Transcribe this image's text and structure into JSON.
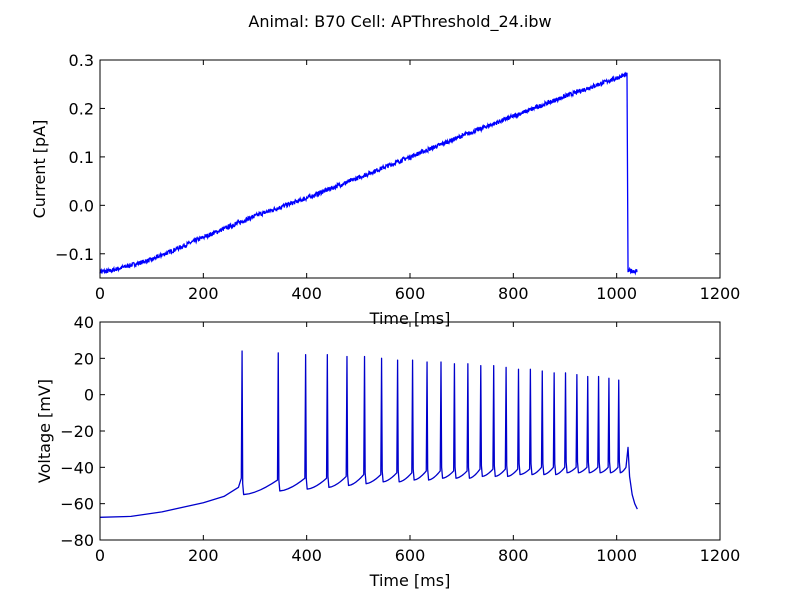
{
  "figure_title": "Animal: B70 Cell: APThreshold_24.ibw",
  "chart_data": [
    {
      "type": "line",
      "xlabel": "Time [ms]",
      "ylabel": "Current [pA]",
      "xlim": [
        0,
        1200
      ],
      "ylim": [
        -0.15,
        0.3
      ],
      "xticks": [
        0,
        200,
        400,
        600,
        800,
        1000,
        1200
      ],
      "xtick_labels": [
        "0",
        "200",
        "400",
        "600",
        "800",
        "1000",
        "1200"
      ],
      "yticks": [
        -0.1,
        0.0,
        0.1,
        0.2,
        0.3
      ],
      "ytick_labels": [
        "−0.1",
        "0.0",
        "0.1",
        "0.2",
        "0.3"
      ],
      "grid": false,
      "color": "#0000ff",
      "series": [
        {
          "x": [
            0,
            20,
            20,
            100,
            200,
            300,
            400,
            500,
            600,
            700,
            800,
            900,
            1000,
            1020,
            1022,
            1040
          ],
          "y": [
            -0.136,
            -0.136,
            -0.135,
            -0.112,
            -0.066,
            -0.022,
            0.015,
            0.057,
            0.1,
            0.143,
            0.184,
            0.225,
            0.263,
            0.27,
            -0.135,
            -0.136
          ]
        }
      ]
    },
    {
      "type": "line",
      "xlabel": "Time [ms]",
      "ylabel": "Voltage [mV]",
      "xlim": [
        0,
        1200
      ],
      "ylim": [
        -80,
        40
      ],
      "xticks": [
        0,
        200,
        400,
        600,
        800,
        1000,
        1200
      ],
      "xtick_labels": [
        "0",
        "200",
        "400",
        "600",
        "800",
        "1000",
        "1200"
      ],
      "yticks": [
        -80,
        -60,
        -40,
        -20,
        0,
        20,
        40
      ],
      "ytick_labels": [
        "−80",
        "−60",
        "−40",
        "−20",
        "0",
        "20",
        "40"
      ],
      "grid": false,
      "color": "#0000cc",
      "baseline": [
        [
          0,
          -67.5
        ],
        [
          60,
          -67
        ],
        [
          120,
          -64.5
        ],
        [
          200,
          -59.5
        ],
        [
          240,
          -56
        ],
        [
          268,
          -51
        ]
      ],
      "spikes": [
        {
          "t": 275,
          "peak": 24,
          "pre": -46,
          "trough": -55
        },
        {
          "t": 345,
          "peak": 23,
          "pre": -47,
          "trough": -53
        },
        {
          "t": 398,
          "peak": 22,
          "pre": -46,
          "trough": -52
        },
        {
          "t": 440,
          "peak": 22,
          "pre": -46,
          "trough": -51
        },
        {
          "t": 478,
          "peak": 21,
          "pre": -45,
          "trough": -50
        },
        {
          "t": 512,
          "peak": 21,
          "pre": -44,
          "trough": -49
        },
        {
          "t": 545,
          "peak": 20,
          "pre": -44,
          "trough": -48
        },
        {
          "t": 576,
          "peak": 19,
          "pre": -43,
          "trough": -48
        },
        {
          "t": 605,
          "peak": 19,
          "pre": -43,
          "trough": -47
        },
        {
          "t": 633,
          "peak": 18,
          "pre": -42,
          "trough": -47
        },
        {
          "t": 660,
          "peak": 18,
          "pre": -42,
          "trough": -46
        },
        {
          "t": 686,
          "peak": 17,
          "pre": -42,
          "trough": -46
        },
        {
          "t": 712,
          "peak": 17,
          "pre": -42,
          "trough": -46
        },
        {
          "t": 737,
          "peak": 16,
          "pre": -41,
          "trough": -45
        },
        {
          "t": 762,
          "peak": 16,
          "pre": -41,
          "trough": -45
        },
        {
          "t": 786,
          "peak": 15,
          "pre": -41,
          "trough": -45
        },
        {
          "t": 810,
          "peak": 14,
          "pre": -41,
          "trough": -44
        },
        {
          "t": 833,
          "peak": 14,
          "pre": -41,
          "trough": -44
        },
        {
          "t": 856,
          "peak": 13,
          "pre": -40,
          "trough": -44
        },
        {
          "t": 879,
          "peak": 12,
          "pre": -40,
          "trough": -44
        },
        {
          "t": 901,
          "peak": 12,
          "pre": -40,
          "trough": -43
        },
        {
          "t": 923,
          "peak": 11,
          "pre": -40,
          "trough": -43
        },
        {
          "t": 944,
          "peak": 10,
          "pre": -40,
          "trough": -43
        },
        {
          "t": 965,
          "peak": 10,
          "pre": -40,
          "trough": -43
        },
        {
          "t": 985,
          "peak": 9,
          "pre": -40,
          "trough": -43
        },
        {
          "t": 1004,
          "peak": 8,
          "pre": -40,
          "trough": -43
        }
      ],
      "tail": [
        [
          1018,
          -40
        ],
        [
          1022,
          -29
        ],
        [
          1025,
          -45
        ],
        [
          1030,
          -55
        ],
        [
          1035,
          -60
        ],
        [
          1040,
          -63
        ]
      ]
    }
  ]
}
